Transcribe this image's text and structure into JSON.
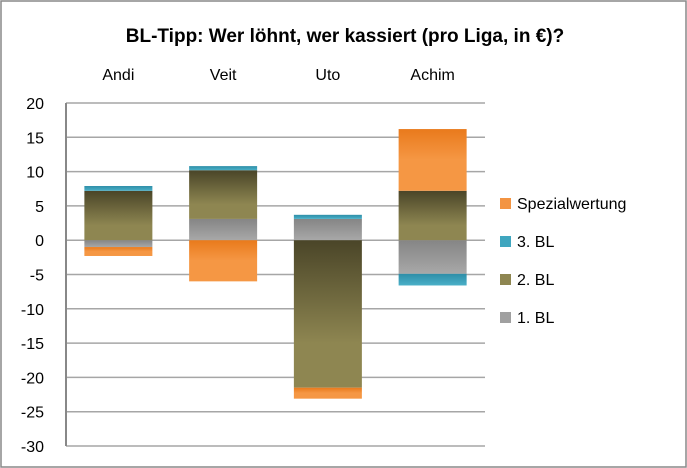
{
  "chart_data": {
    "type": "bar",
    "stacked": true,
    "title": "BL-Tipp: Wer löhnt, wer kassiert (pro Liga, in €)?",
    "categories": [
      "Andi",
      "Veit",
      "Uto",
      "Achim"
    ],
    "ylim": [
      -30,
      20
    ],
    "yticks": [
      20,
      15,
      10,
      5,
      0,
      -5,
      -10,
      -15,
      -20,
      -25,
      -30
    ],
    "grid": true,
    "legend_position": "right",
    "series": [
      {
        "name": "1. BL",
        "color": "#a0a0a0",
        "values": [
          -1.0,
          3.1,
          3.1,
          -4.9
        ]
      },
      {
        "name": "2. BL",
        "color": "#8e8651",
        "values": [
          7.2,
          7.1,
          -21.5,
          7.2
        ]
      },
      {
        "name": "3. BL",
        "color": "#3fa6bf",
        "values": [
          0.7,
          0.6,
          0.6,
          -1.7
        ]
      },
      {
        "name": "Spezialwertung",
        "color": "#f39442",
        "values": [
          -1.3,
          -6.0,
          -1.6,
          9.0
        ]
      }
    ]
  }
}
